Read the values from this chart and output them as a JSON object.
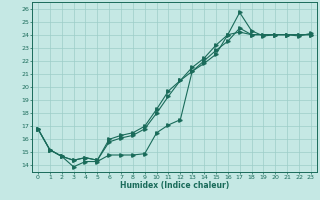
{
  "xlabel": "Humidex (Indice chaleur)",
  "bg_color": "#c5e8e4",
  "grid_color": "#9dcdc8",
  "line_color": "#1a6b5a",
  "xlim": [
    -0.5,
    23.5
  ],
  "ylim": [
    13.5,
    26.5
  ],
  "xticks": [
    0,
    1,
    2,
    3,
    4,
    5,
    6,
    7,
    8,
    9,
    10,
    11,
    12,
    13,
    14,
    15,
    16,
    17,
    18,
    19,
    20,
    21,
    22,
    23
  ],
  "yticks": [
    14,
    15,
    16,
    17,
    18,
    19,
    20,
    21,
    22,
    23,
    24,
    25,
    26
  ],
  "line1_x": [
    0,
    1,
    2,
    3,
    4,
    5,
    6,
    7,
    8,
    9,
    10,
    11,
    12,
    13,
    14,
    15,
    16,
    17,
    18,
    19,
    20,
    21,
    22,
    23
  ],
  "line1_y": [
    16.8,
    15.2,
    14.7,
    13.9,
    14.3,
    14.3,
    14.8,
    14.8,
    14.8,
    14.9,
    16.5,
    17.1,
    17.5,
    21.2,
    21.8,
    22.5,
    24.0,
    24.2,
    24.0,
    24.0,
    24.0,
    24.0,
    24.0,
    24.0
  ],
  "line2_x": [
    0,
    1,
    2,
    3,
    4,
    5,
    6,
    7,
    8,
    9,
    10,
    11,
    12,
    13,
    14,
    15,
    16,
    17,
    18,
    19,
    20,
    21,
    22,
    23
  ],
  "line2_y": [
    16.8,
    15.2,
    14.7,
    14.4,
    14.6,
    14.4,
    16.0,
    16.3,
    16.5,
    17.0,
    18.3,
    19.7,
    20.5,
    21.5,
    22.2,
    23.2,
    24.0,
    25.7,
    24.3,
    23.9,
    24.0,
    24.0,
    23.9,
    24.1
  ],
  "line3_x": [
    0,
    1,
    2,
    3,
    4,
    5,
    6,
    7,
    8,
    9,
    10,
    11,
    12,
    13,
    14,
    15,
    16,
    17,
    18,
    19,
    20,
    21,
    22,
    23
  ],
  "line3_y": [
    16.8,
    15.2,
    14.7,
    14.4,
    14.6,
    14.4,
    15.8,
    16.1,
    16.3,
    16.8,
    18.0,
    19.3,
    20.5,
    21.2,
    22.0,
    22.8,
    23.5,
    24.5,
    24.0,
    24.0,
    24.0,
    24.0,
    24.0,
    24.0
  ]
}
